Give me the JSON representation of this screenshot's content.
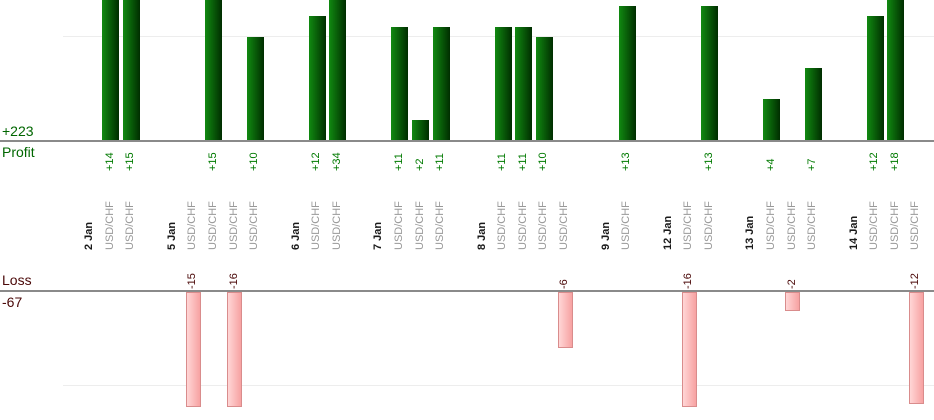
{
  "panels": {
    "profit": {
      "title": "Profit",
      "total": "+223"
    },
    "loss": {
      "title": "Loss",
      "total": "-67"
    }
  },
  "chart_data": {
    "type": "bar",
    "description": "Daily trade profit/loss report; green bars above the Profit axis, pink bars below the Loss axis; one column per trade, labels rotated vertically",
    "profit_axis": {
      "total": 223,
      "gridline_value": 10
    },
    "loss_axis": {
      "total": -67,
      "gridline_value": -10
    },
    "groups": [
      {
        "date": "2 Jan",
        "trades": [
          {
            "symbol": "USD/CHF",
            "value": 14,
            "label": "+14"
          },
          {
            "symbol": "USD/CHF",
            "value": 15,
            "label": "+15"
          }
        ]
      },
      {
        "date": "5 Jan",
        "trades": [
          {
            "symbol": "USD/CHF",
            "value": -15,
            "label": "-15"
          },
          {
            "symbol": "USD/CHF",
            "value": 15,
            "label": "+15"
          },
          {
            "symbol": "USD/CHF",
            "value": -16,
            "label": "-16"
          },
          {
            "symbol": "USD/CHF",
            "value": 10,
            "label": "+10"
          }
        ]
      },
      {
        "date": "6 Jan",
        "trades": [
          {
            "symbol": "USD/CHF",
            "value": 12,
            "label": "+12"
          },
          {
            "symbol": "USD/CHF",
            "value": 34,
            "label": "+34"
          }
        ]
      },
      {
        "date": "7 Jan",
        "trades": [
          {
            "symbol": "USD/CHF",
            "value": 11,
            "label": "+11"
          },
          {
            "symbol": "USD/CHF",
            "value": 2,
            "label": "+2"
          },
          {
            "symbol": "USD/CHF",
            "value": 11,
            "label": "+11"
          }
        ]
      },
      {
        "date": "8 Jan",
        "trades": [
          {
            "symbol": "USD/CHF",
            "value": 11,
            "label": "+11"
          },
          {
            "symbol": "USD/CHF",
            "value": 11,
            "label": "+11"
          },
          {
            "symbol": "USD/CHF",
            "value": 10,
            "label": "+10"
          },
          {
            "symbol": "USD/CHF",
            "value": -6,
            "label": "-6"
          }
        ]
      },
      {
        "date": "9 Jan",
        "trades": [
          {
            "symbol": "USD/CHF",
            "value": 13,
            "label": "+13"
          }
        ]
      },
      {
        "date": "12 Jan",
        "trades": [
          {
            "symbol": "USD/CHF",
            "value": -16,
            "label": "-16"
          },
          {
            "symbol": "USD/CHF",
            "value": 13,
            "label": "+13"
          }
        ]
      },
      {
        "date": "13 Jan",
        "trades": [
          {
            "symbol": "USD/CHF",
            "value": 4,
            "label": "+4"
          },
          {
            "symbol": "USD/CHF",
            "value": -2,
            "label": "-2"
          },
          {
            "symbol": "USD/CHF",
            "value": 7,
            "label": "+7"
          }
        ]
      },
      {
        "date": "14 Jan",
        "trades": [
          {
            "symbol": "USD/CHF",
            "value": 12,
            "label": "+12"
          },
          {
            "symbol": "USD/CHF",
            "value": 18,
            "label": "+18"
          },
          {
            "symbol": "USD/CHF",
            "value": -12,
            "label": "-12"
          }
        ]
      }
    ],
    "colors": {
      "profit_bar_light": "#118a11",
      "profit_bar_dark": "#002d00",
      "loss_bar_light": "#ffd6d6",
      "loss_bar_dark": "#f7a2a2",
      "loss_bar_border": "#d98c8c",
      "profit_text": "#007a00",
      "profit_title_text": "#006600",
      "loss_text": "#4a0808",
      "date_text": "#1a1a1a",
      "symbol_text": "#999999",
      "axis_line": "#8a8a8a",
      "gridline": "#ededed",
      "background": "#ffffff"
    }
  }
}
